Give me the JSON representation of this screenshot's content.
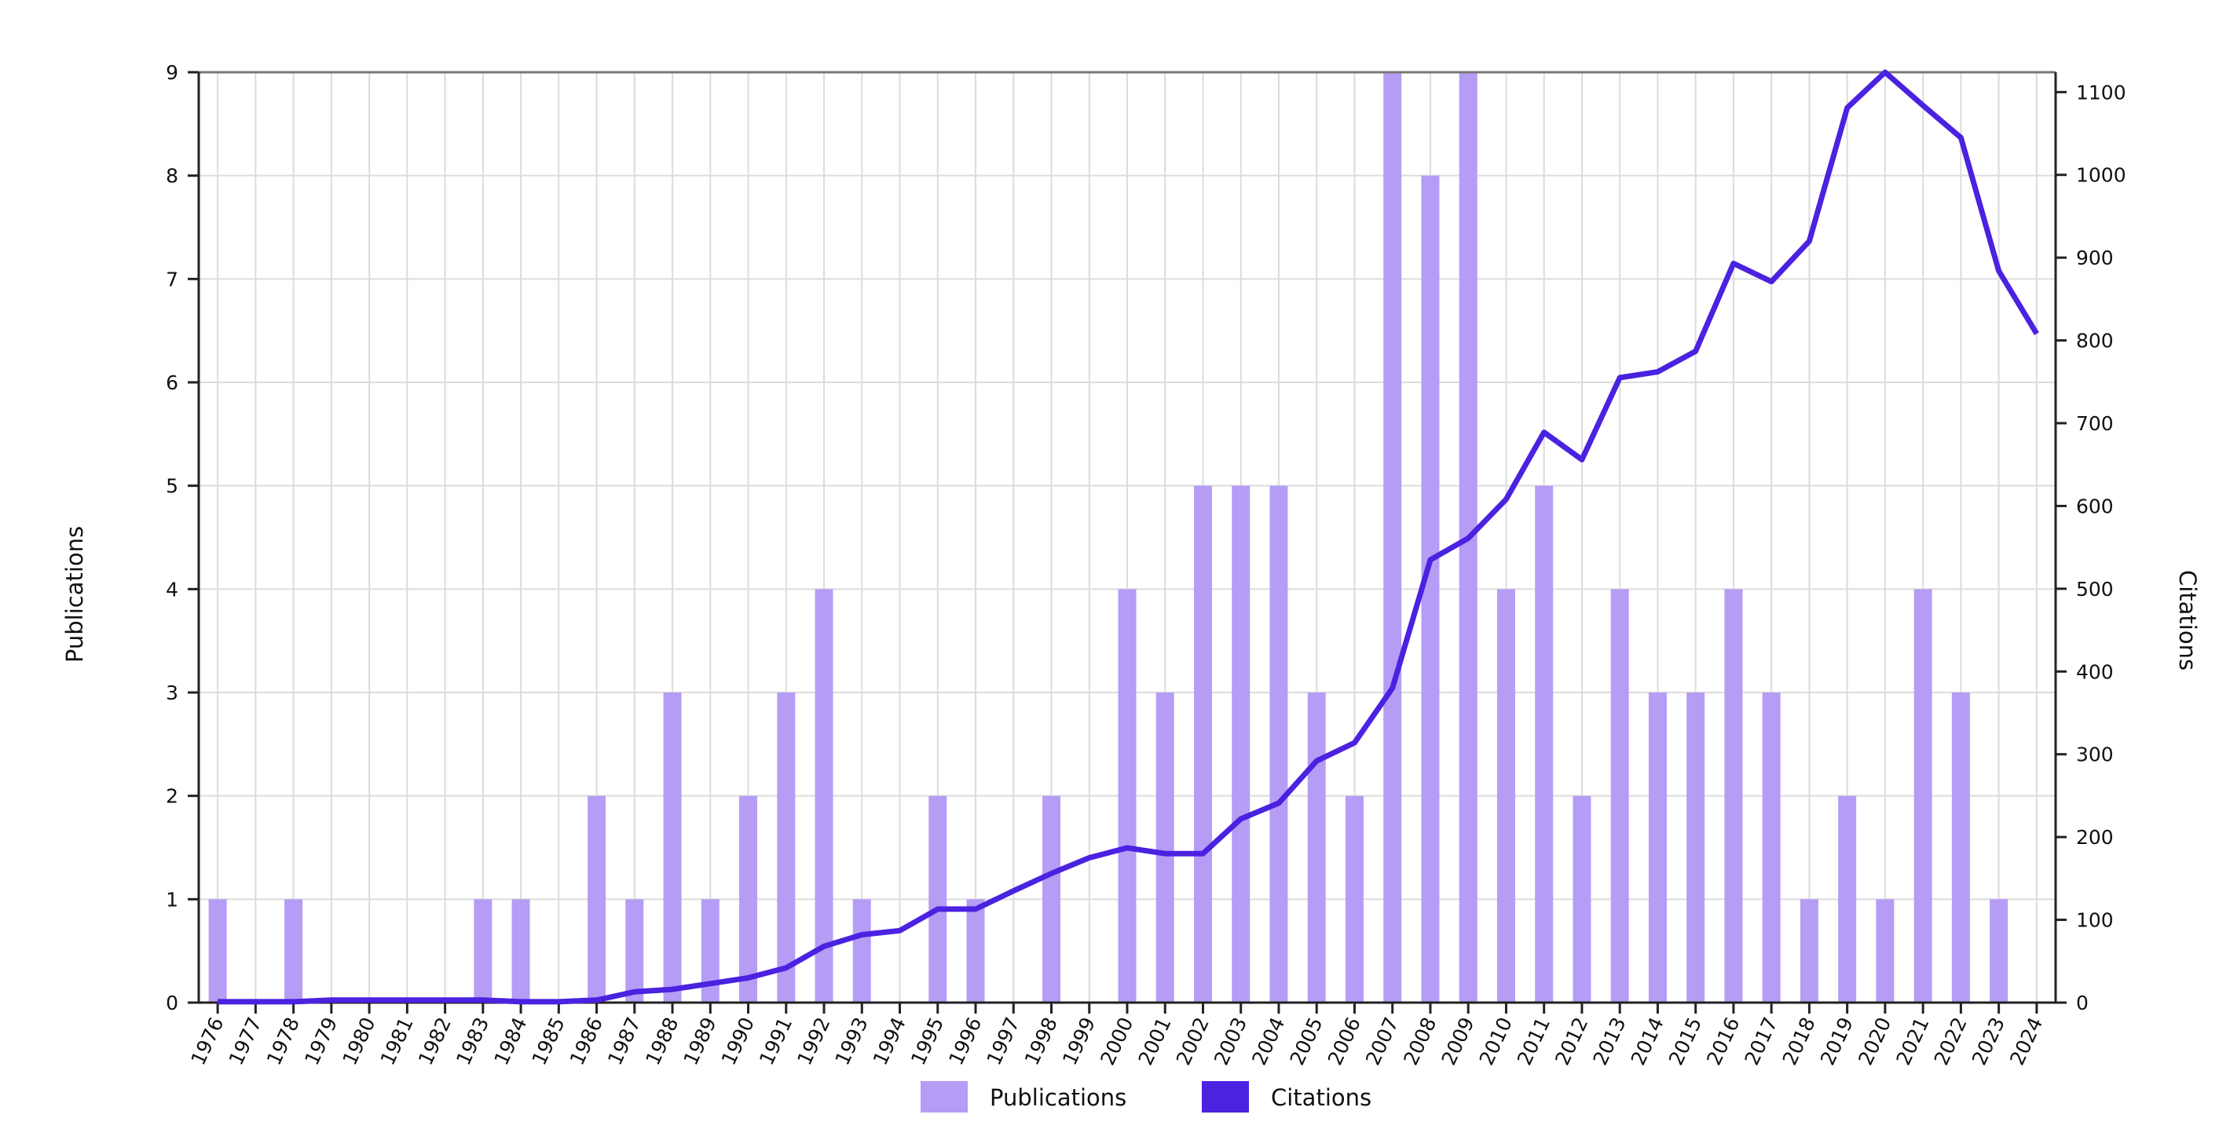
{
  "colors": {
    "publications_bar": "#b59df5",
    "citations_line": "#4a22e0",
    "grid": "#dcdcdc",
    "axis": "#222222",
    "top_border": "#777777"
  },
  "chart_data": {
    "type": "bar",
    "x": [
      "1976",
      "1977",
      "1978",
      "1979",
      "1980",
      "1981",
      "1982",
      "1983",
      "1984",
      "1985",
      "1986",
      "1987",
      "1988",
      "1989",
      "1990",
      "1991",
      "1992",
      "1993",
      "1994",
      "1995",
      "1996",
      "1997",
      "1998",
      "1999",
      "2000",
      "2001",
      "2002",
      "2003",
      "2004",
      "2005",
      "2006",
      "2007",
      "2008",
      "2009",
      "2010",
      "2011",
      "2012",
      "2013",
      "2014",
      "2015",
      "2016",
      "2017",
      "2018",
      "2019",
      "2020",
      "2021",
      "2022",
      "2023",
      "2024"
    ],
    "series": [
      {
        "name": "Publications",
        "type": "bar",
        "axis": "left",
        "values": [
          1,
          0,
          1,
          0,
          0,
          0,
          0,
          1,
          1,
          0,
          2,
          1,
          3,
          1,
          2,
          3,
          4,
          1,
          0,
          2,
          1,
          0,
          2,
          0,
          4,
          3,
          5,
          5,
          5,
          3,
          2,
          9,
          8,
          9,
          4,
          5,
          2,
          4,
          3,
          3,
          4,
          3,
          1,
          2,
          1,
          4,
          3,
          1,
          0
        ]
      },
      {
        "name": "Citations",
        "type": "line",
        "axis": "right",
        "values": [
          1,
          1,
          1,
          3,
          3,
          3,
          3,
          3,
          1,
          1,
          3,
          13,
          16,
          23,
          30,
          42,
          68,
          82,
          87,
          113,
          113,
          135,
          156,
          175,
          187,
          180,
          180,
          222,
          241,
          292,
          314,
          380,
          535,
          561,
          608,
          689,
          656,
          755,
          762,
          787,
          893,
          871,
          920,
          1081,
          1124,
          1084,
          1045,
          884,
          808
        ]
      }
    ],
    "ylabel": "Publications",
    "ylim": [
      0,
      9
    ],
    "yticks": [
      "0",
      "1",
      "2",
      "3",
      "4",
      "5",
      "6",
      "7",
      "8",
      "9"
    ],
    "y2label": "Citations",
    "y2lim": [
      0,
      1124
    ],
    "y2ticks": [
      "0",
      "100",
      "200",
      "300",
      "400",
      "500",
      "600",
      "700",
      "800",
      "900",
      "1000",
      "1100"
    ],
    "grid": true,
    "legend": {
      "position": "bottom-center",
      "entries": [
        "Publications",
        "Citations"
      ]
    }
  }
}
